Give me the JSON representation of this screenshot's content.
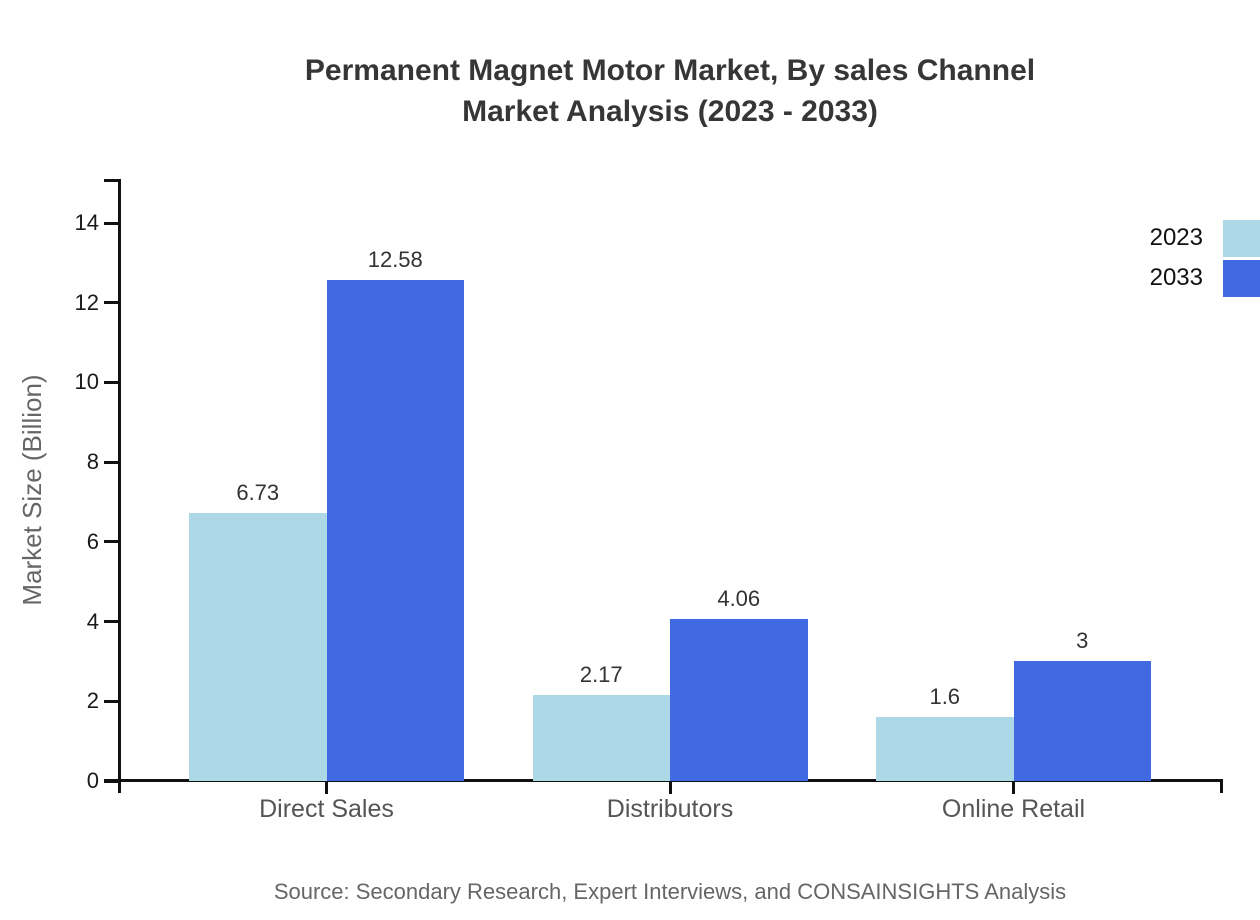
{
  "title": {
    "line1": "Permanent Magnet Motor Market, By sales Channel",
    "line2": "Market Analysis (2023 - 2033)"
  },
  "source": "Source: Secondary Research, Expert Interviews, and CONSAINSIGHTS Analysis",
  "chart_data": {
    "type": "bar",
    "title": "Permanent Magnet Motor Market, By sales Channel Market Analysis (2023 - 2033)",
    "categories": [
      "Direct Sales",
      "Distributors",
      "Online Retail"
    ],
    "series": [
      {
        "name": "2023",
        "color": "#ADD8E6",
        "values": [
          6.73,
          2.17,
          1.6
        ]
      },
      {
        "name": "2033",
        "color": "#4169E1",
        "values": [
          12.58,
          4.06,
          3
        ]
      }
    ],
    "xlabel": "",
    "ylabel": "Market Size (Billion)",
    "ylim": [
      0,
      15
    ],
    "yticks": [
      0,
      2,
      4,
      6,
      8,
      10,
      12,
      14
    ],
    "grid": false,
    "legend_position": "top-right",
    "axis_color": "#111111",
    "value_label_color": "#333333"
  }
}
